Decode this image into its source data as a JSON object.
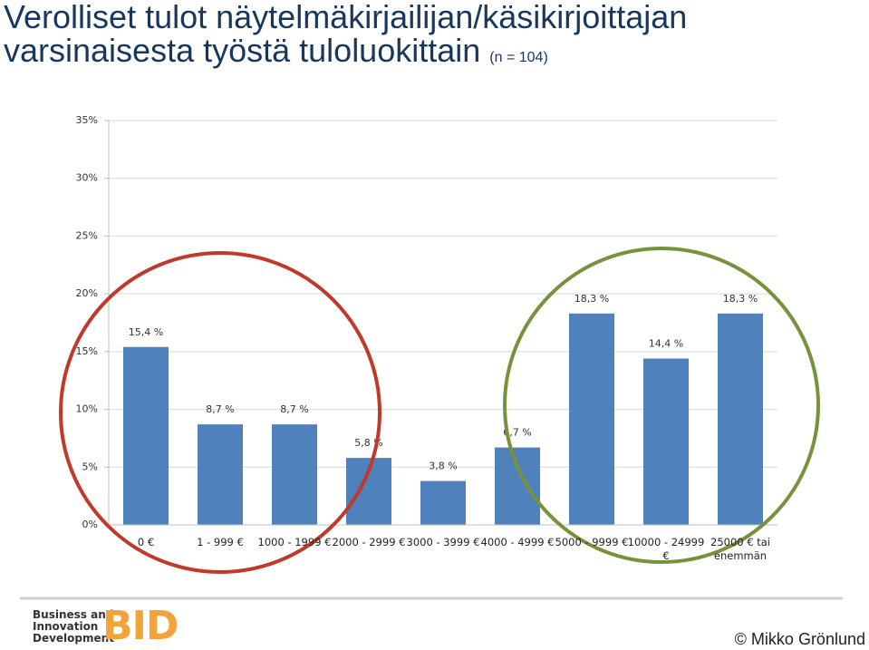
{
  "chart_data": {
    "type": "bar",
    "title": "Verolliset tulot näytelmäkirjailijan/käsikirjoittajan varsinaisesta työstä tuloluokittain",
    "subtitle": "(n = 104)",
    "categories": [
      "0 €",
      "1 - 999 €",
      "1000 - 1999 €",
      "2000 - 2999 €",
      "3000 - 3999 €",
      "4000 - 4999 €",
      "5000 - 9999 €",
      "10000 - 24999 €",
      "25000 € tai enemmän"
    ],
    "values": [
      15.4,
      8.7,
      8.7,
      5.8,
      3.8,
      6.7,
      18.3,
      14.4,
      18.3
    ],
    "value_labels": [
      "15,4 %",
      "8,7 %",
      "8,7 %",
      "5,8 %",
      "3,8 %",
      "6,7 %",
      "18,3 %",
      "14,4 %",
      "18,3 %"
    ],
    "color": "#4f81bd",
    "ylim": [
      0,
      35
    ],
    "yticks": [
      {
        "value": 0,
        "label": "0%"
      },
      {
        "value": 5,
        "label": "5%"
      },
      {
        "value": 10,
        "label": "10%"
      },
      {
        "value": 15,
        "label": "15%"
      },
      {
        "value": 20,
        "label": "20%"
      },
      {
        "value": 25,
        "label": "25%"
      },
      {
        "value": 30,
        "label": "30%"
      },
      {
        "value": 35,
        "label": "35%"
      }
    ],
    "grid": true
  },
  "footer": {
    "logo_lines": [
      "Business and",
      "Innovation",
      "Development"
    ],
    "logo_mark": "BID",
    "copyright": "© Mikko Grönlund"
  }
}
